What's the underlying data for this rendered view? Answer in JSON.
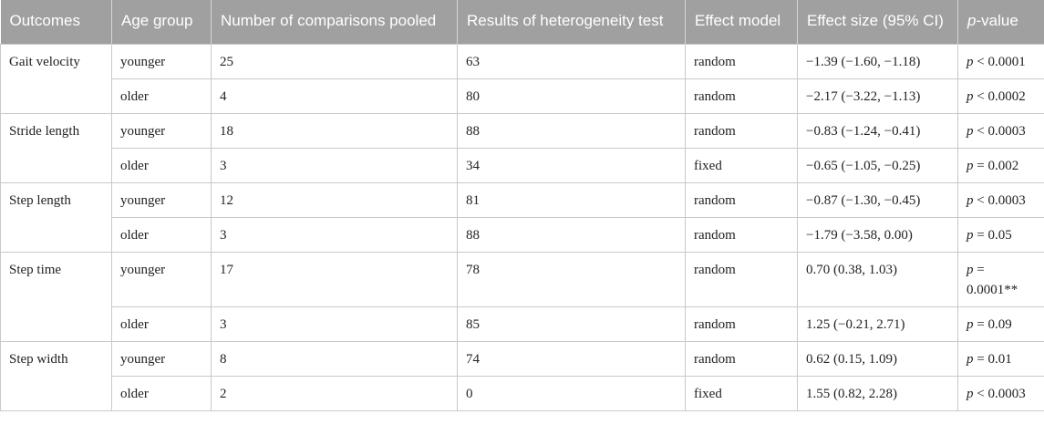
{
  "headers": {
    "outcomes": "Outcomes",
    "age_group": "Age group",
    "comparisons": "Number of comparisons pooled",
    "heterogeneity": "Results of heterogeneity test",
    "effect_model": "Effect model",
    "effect_size": "Effect size (95% CI)",
    "p_value_italic": "p",
    "p_value_suffix": "-value"
  },
  "rows": [
    {
      "outcome": "Gait velocity",
      "age": "younger",
      "n": "25",
      "het": "63",
      "model": "random",
      "es": "−1.39 (−1.60, −1.18)",
      "p_italic": "p",
      "p_rest": " < 0.0001"
    },
    {
      "outcome": "",
      "age": "older",
      "n": "4",
      "het": "80",
      "model": "random",
      "es": "−2.17 (−3.22, −1.13)",
      "p_italic": "p",
      "p_rest": " < 0.0002"
    },
    {
      "outcome": "Stride length",
      "age": "younger",
      "n": "18",
      "het": "88",
      "model": "random",
      "es": "−0.83 (−1.24, −0.41)",
      "p_italic": "p",
      "p_rest": " < 0.0003"
    },
    {
      "outcome": "",
      "age": "older",
      "n": "3",
      "het": "34",
      "model": "fixed",
      "es": "−0.65 (−1.05, −0.25)",
      "p_italic": "p",
      "p_rest": " = 0.002"
    },
    {
      "outcome": "Step length",
      "age": "younger",
      "n": "12",
      "het": "81",
      "model": "random",
      "es": "−0.87 (−1.30, −0.45)",
      "p_italic": "p",
      "p_rest": " < 0.0003"
    },
    {
      "outcome": "",
      "age": "older",
      "n": "3",
      "het": "88",
      "model": "random",
      "es": "−1.79 (−3.58, 0.00)",
      "p_italic": "p",
      "p_rest": " = 0.05"
    },
    {
      "outcome": "Step time",
      "age": "younger",
      "n": "17",
      "het": "78",
      "model": "random",
      "es": "0.70 (0.38, 1.03)",
      "p_italic": "p",
      "p_rest": " = 0.0001**"
    },
    {
      "outcome": "",
      "age": "older",
      "n": "3",
      "het": "85",
      "model": "random",
      "es": "1.25 (−0.21, 2.71)",
      "p_italic": "p",
      "p_rest": " = 0.09"
    },
    {
      "outcome": "Step width",
      "age": "younger",
      "n": "8",
      "het": "74",
      "model": "random",
      "es": "0.62 (0.15, 1.09)",
      "p_italic": "p",
      "p_rest": " = 0.01"
    },
    {
      "outcome": "",
      "age": "older",
      "n": "2",
      "het": "0",
      "model": "fixed",
      "es": "1.55 (0.82, 2.28)",
      "p_italic": "p",
      "p_rest": " < 0.0003"
    }
  ]
}
